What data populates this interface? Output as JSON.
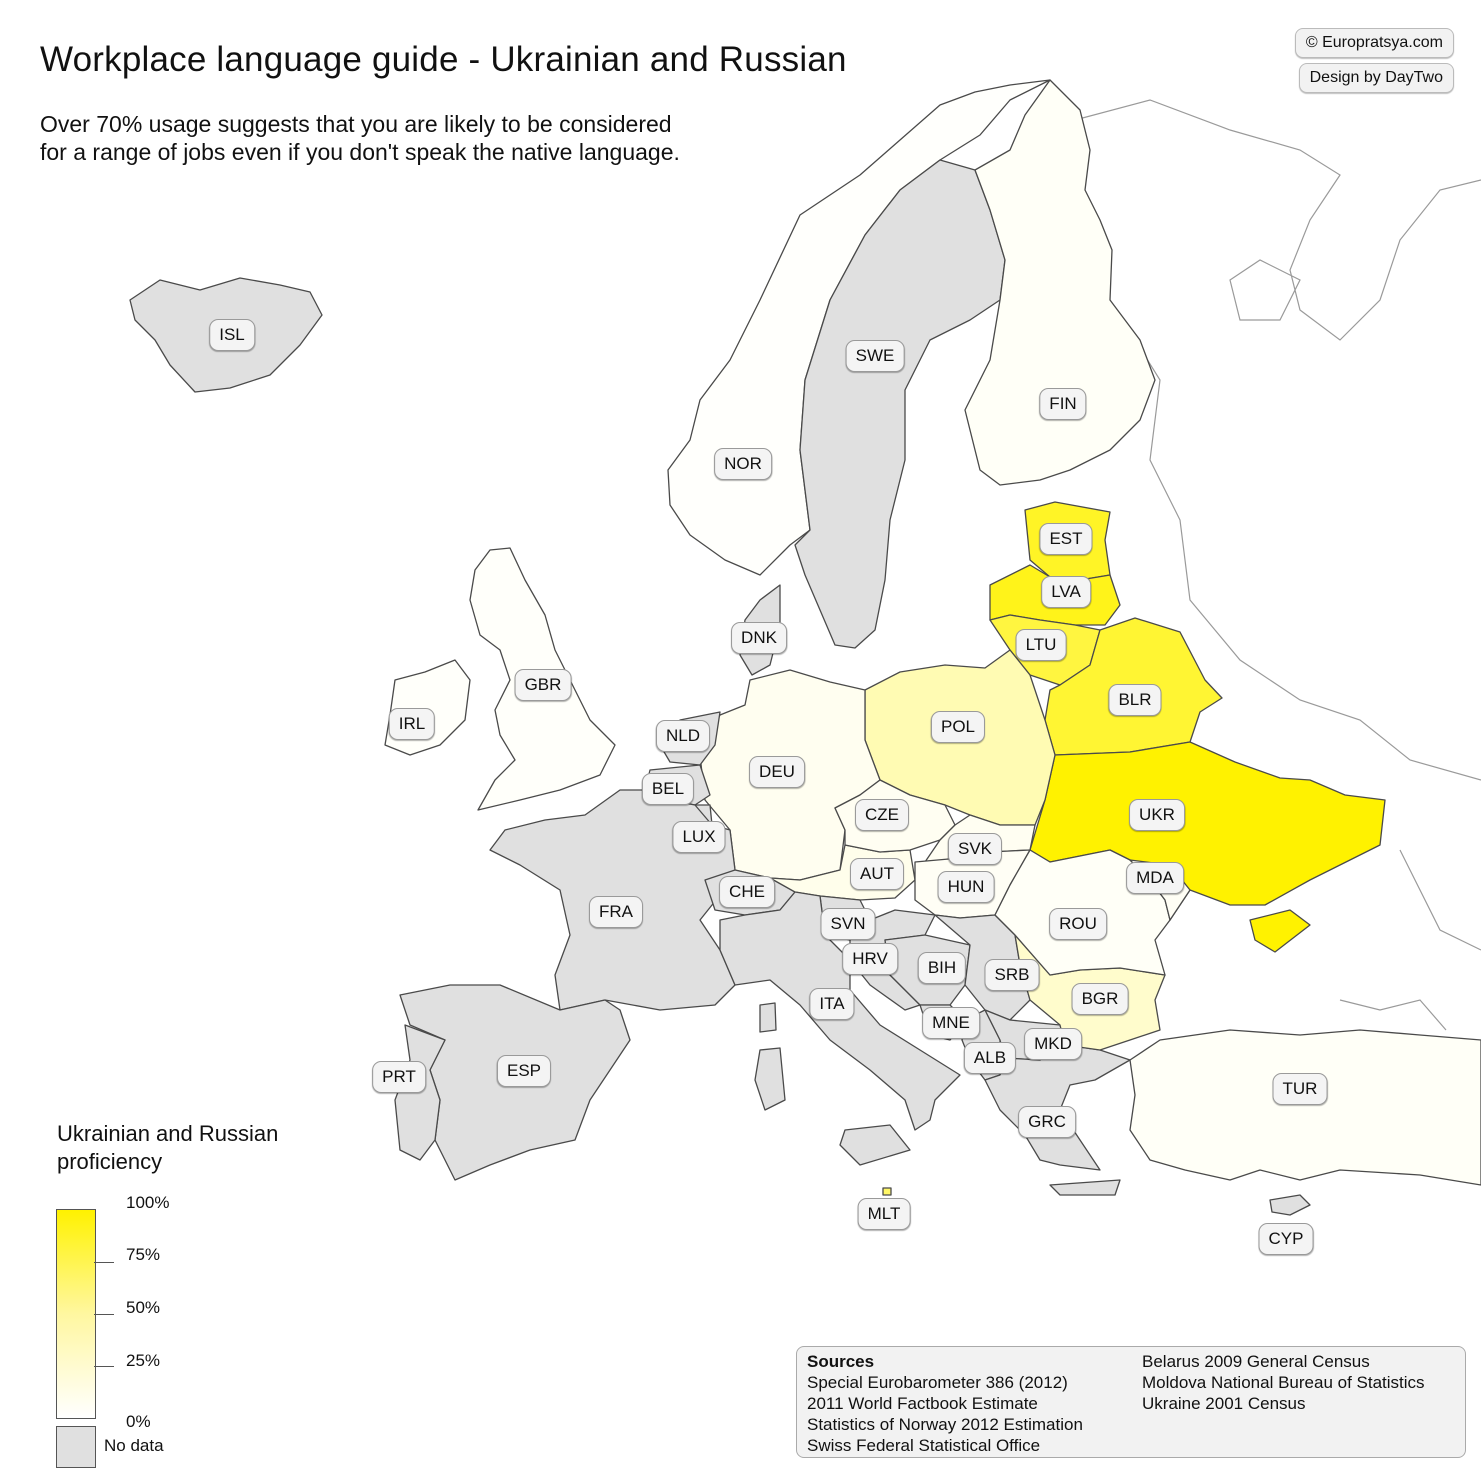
{
  "title": "Workplace language guide - Ukrainian and Russian",
  "subtitle": "Over 70% usage suggests that you are likely to be considered for a range of jobs even if you don't speak the native language.",
  "credits": {
    "site": "© Europratsya.com",
    "design": "Design by DayTwo"
  },
  "colors": {
    "no_data": "#e0e0e0",
    "scale_max": "#fff200",
    "scale_min": "#ffffff",
    "border": "#4a4a4a",
    "outside": "#ffffff"
  },
  "countries": [
    {
      "code": "ISL",
      "value": null
    },
    {
      "code": "NOR",
      "value": 0.01
    },
    {
      "code": "SWE",
      "value": null
    },
    {
      "code": "FIN",
      "value": 0.03
    },
    {
      "code": "EST",
      "value": 0.85
    },
    {
      "code": "LVA",
      "value": 0.9
    },
    {
      "code": "LTU",
      "value": 0.75
    },
    {
      "code": "BLR",
      "value": 0.8
    },
    {
      "code": "UKR",
      "value": 1.0
    },
    {
      "code": "POL",
      "value": 0.3
    },
    {
      "code": "DEU",
      "value": 0.06
    },
    {
      "code": "DNK",
      "value": null
    },
    {
      "code": "GBR",
      "value": 0.02
    },
    {
      "code": "IRL",
      "value": 0.02
    },
    {
      "code": "NLD",
      "value": null
    },
    {
      "code": "BEL",
      "value": null
    },
    {
      "code": "LUX",
      "value": null
    },
    {
      "code": "FRA",
      "value": null
    },
    {
      "code": "CHE",
      "value": null
    },
    {
      "code": "AUT",
      "value": 0.08
    },
    {
      "code": "CZE",
      "value": 0.05
    },
    {
      "code": "SVK",
      "value": 0.05
    },
    {
      "code": "HUN",
      "value": 0.04
    },
    {
      "code": "SVN",
      "value": null
    },
    {
      "code": "HRV",
      "value": null
    },
    {
      "code": "BIH",
      "value": null
    },
    {
      "code": "SRB",
      "value": null
    },
    {
      "code": "MNE",
      "value": null
    },
    {
      "code": "ALB",
      "value": null
    },
    {
      "code": "MKD",
      "value": null
    },
    {
      "code": "GRC",
      "value": null
    },
    {
      "code": "BGR",
      "value": 0.2
    },
    {
      "code": "ROU",
      "value": 0.03
    },
    {
      "code": "MDA",
      "value": 0.04
    },
    {
      "code": "ITA",
      "value": null
    },
    {
      "code": "ESP",
      "value": null
    },
    {
      "code": "PRT",
      "value": null
    },
    {
      "code": "TUR",
      "value": 0.03
    },
    {
      "code": "CYP",
      "value": null
    },
    {
      "code": "MLT",
      "value": 0.6
    }
  ],
  "legend": {
    "title": "Ukrainian and Russian proficiency",
    "ticks": [
      "100%",
      "75%",
      "50%",
      "25%",
      "0%"
    ],
    "no_data": "No data"
  },
  "sources": {
    "heading": "Sources",
    "col1": [
      "Special Eurobarometer 386 (2012)",
      "2011 World Factbook Estimate",
      "Statistics of Norway 2012 Estimation",
      "Swiss Federal Statistical Office"
    ],
    "col2": [
      "Belarus 2009 General Census",
      "Moldova National Bureau of Statistics",
      "Ukraine 2001 Census"
    ]
  }
}
